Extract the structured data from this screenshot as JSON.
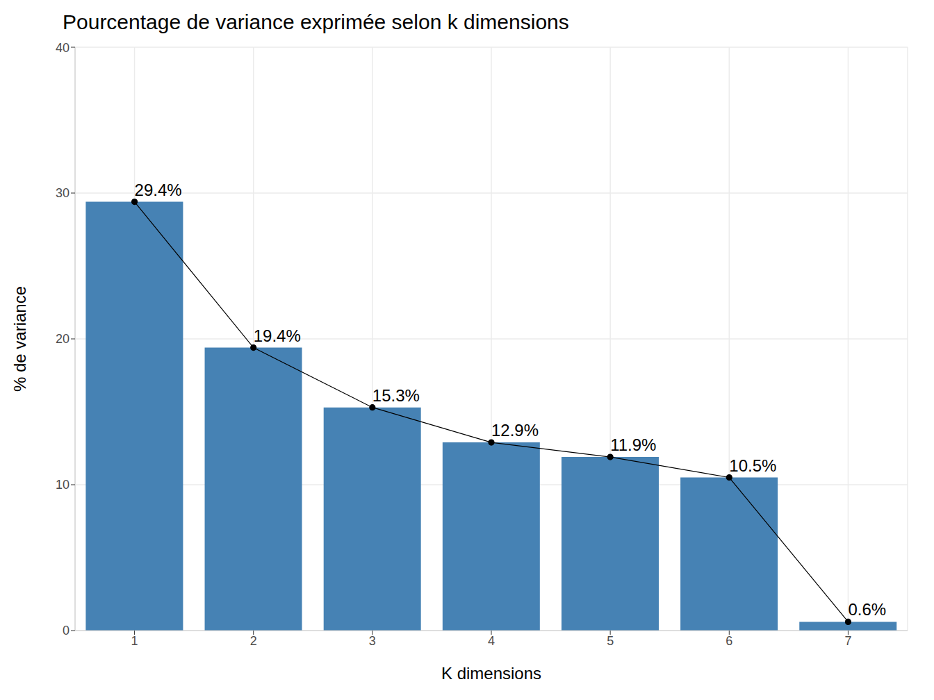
{
  "chart_data": {
    "type": "bar",
    "title": "Pourcentage de variance exprimée selon k dimensions",
    "x_label": "K dimensions",
    "y_label": "% de variance",
    "categories": [
      "1",
      "2",
      "3",
      "4",
      "5",
      "6",
      "7"
    ],
    "series": [
      {
        "type": "bar",
        "color": "#4682b4",
        "values": [
          29.4,
          19.4,
          15.3,
          12.9,
          11.9,
          10.5,
          0.6
        ]
      },
      {
        "type": "line",
        "color": "#000000",
        "marker": "circle",
        "values": [
          29.4,
          19.4,
          15.3,
          12.9,
          11.9,
          10.5,
          0.6
        ],
        "value_labels": [
          "29.4%",
          "19.4%",
          "15.3%",
          "12.9%",
          "11.9%",
          "10.5%",
          "0.6%"
        ]
      }
    ],
    "ylim": [
      0,
      40
    ],
    "yticks": [
      0,
      10,
      20,
      30,
      40
    ],
    "grid": true,
    "data_labels": true
  }
}
